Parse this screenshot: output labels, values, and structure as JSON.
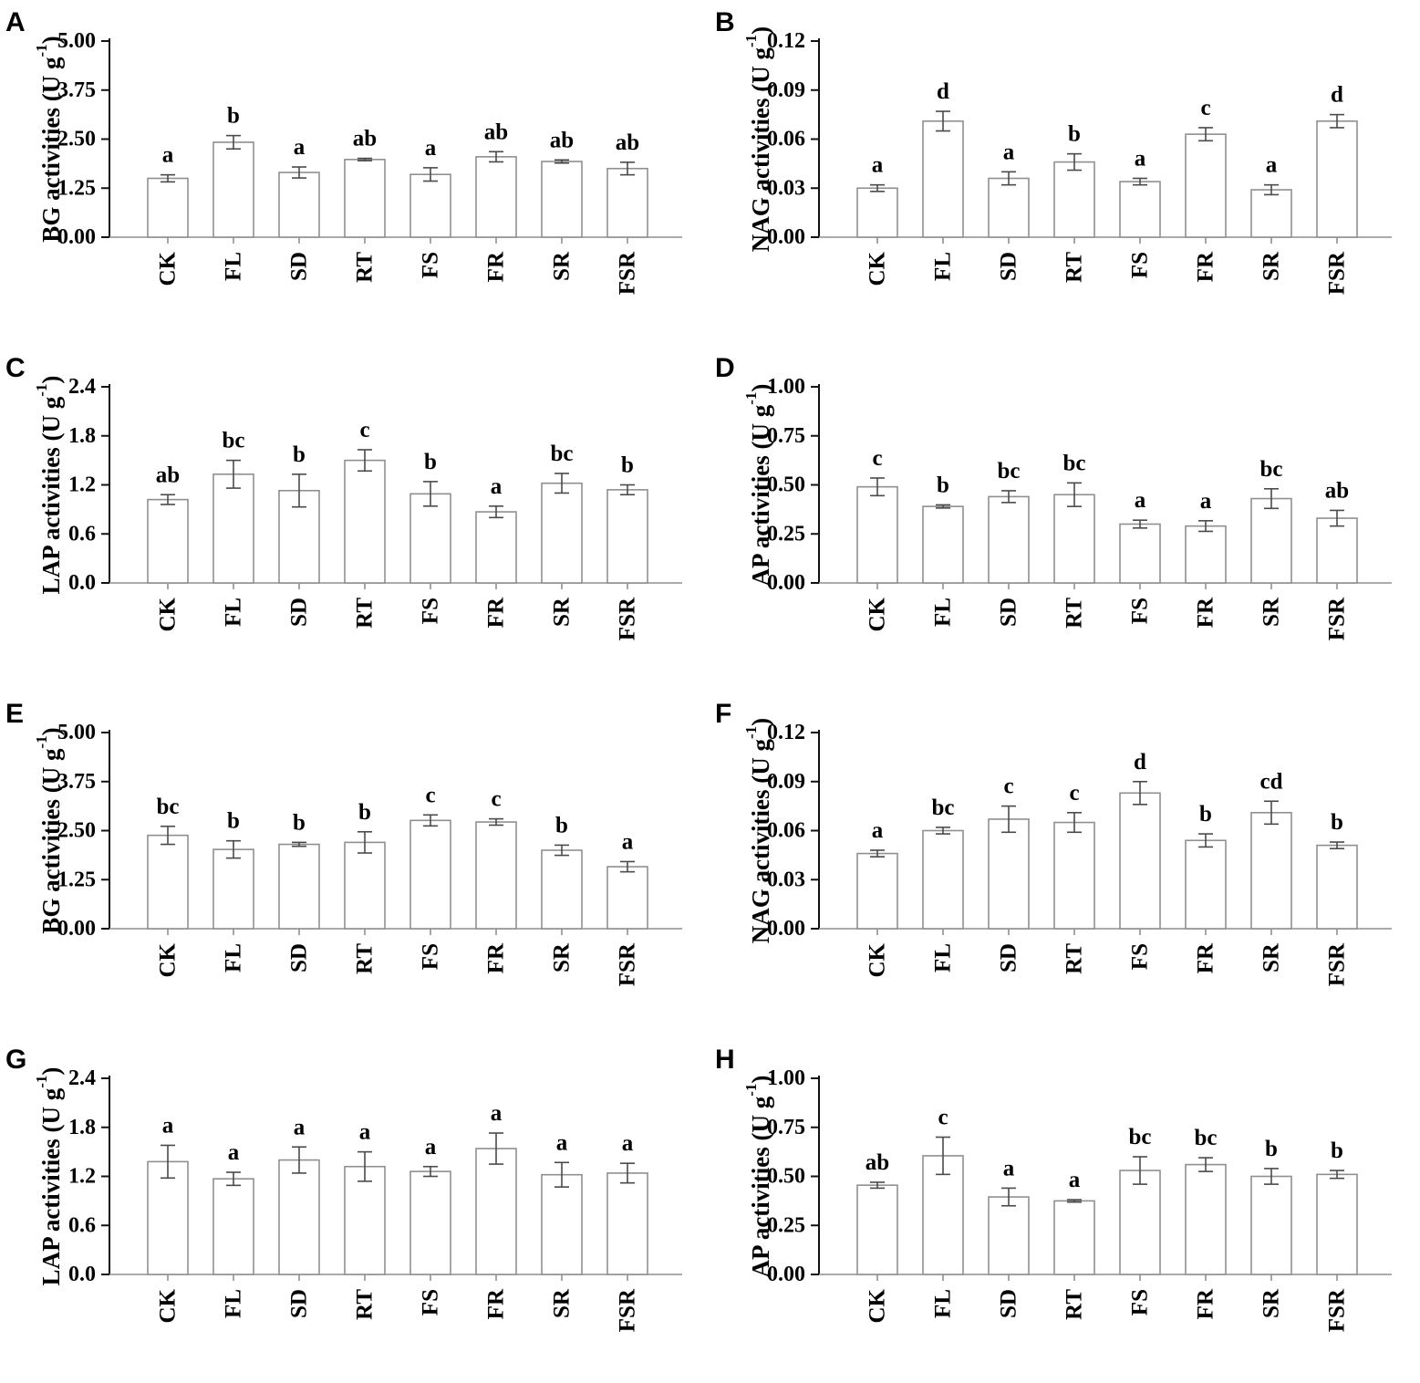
{
  "figure": {
    "background": "#ffffff",
    "panel_letters": [
      "A",
      "B",
      "C",
      "D",
      "E",
      "F",
      "G",
      "H"
    ]
  },
  "colors": {
    "bar_fill": "#ffffff",
    "bar_stroke": "#8f8f8f",
    "axis": "#111111",
    "baseline": "#8f8f8f",
    "error_bar": "#4a4a4a",
    "text": "#000000"
  },
  "chart_data": [
    {
      "panel": "A",
      "type": "bar",
      "ylabel": "BG activities (U g⁻¹)",
      "ylabel_prefix": "BG activities (U g",
      "ylabel_sup": "-1",
      "ylabel_suffix": ")",
      "categories": [
        "CK",
        "FL",
        "SD",
        "RT",
        "FS",
        "FR",
        "SR",
        "FSR"
      ],
      "values": [
        1.5,
        2.42,
        1.65,
        1.98,
        1.6,
        2.05,
        1.93,
        1.75
      ],
      "errors": [
        0.09,
        0.17,
        0.14,
        0.03,
        0.17,
        0.13,
        0.04,
        0.16
      ],
      "sig_letters": [
        "a",
        "b",
        "a",
        "ab",
        "a",
        "ab",
        "ab",
        "ab"
      ],
      "ylim": [
        0,
        5
      ],
      "yticks": [
        0,
        1.25,
        2.5,
        3.75,
        5
      ],
      "ytick_labels": [
        "0.00",
        "1.25",
        "2.50",
        "3.75",
        "5.00"
      ],
      "grid": false,
      "legend": null
    },
    {
      "panel": "B",
      "type": "bar",
      "ylabel": "NAG activities (U g⁻¹)",
      "ylabel_prefix": "NAG activities (U g",
      "ylabel_sup": "-1",
      "ylabel_suffix": ")",
      "categories": [
        "CK",
        "FL",
        "SD",
        "RT",
        "FS",
        "FR",
        "SR",
        "FSR"
      ],
      "values": [
        0.03,
        0.071,
        0.036,
        0.046,
        0.034,
        0.063,
        0.029,
        0.071
      ],
      "errors": [
        0.002,
        0.006,
        0.004,
        0.005,
        0.002,
        0.004,
        0.003,
        0.004
      ],
      "sig_letters": [
        "a",
        "d",
        "a",
        "b",
        "a",
        "c",
        "a",
        "d"
      ],
      "ylim": [
        0,
        0.12
      ],
      "yticks": [
        0,
        0.03,
        0.06,
        0.09,
        0.12
      ],
      "ytick_labels": [
        "0.00",
        "0.03",
        "0.06",
        "0.09",
        "0.12"
      ],
      "grid": false,
      "legend": null
    },
    {
      "panel": "C",
      "type": "bar",
      "ylabel": "LAP activities (U g⁻¹)",
      "ylabel_prefix": "LAP activities (U g",
      "ylabel_sup": "-1",
      "ylabel_suffix": ")",
      "categories": [
        "CK",
        "FL",
        "SD",
        "RT",
        "FS",
        "FR",
        "SR",
        "FSR"
      ],
      "values": [
        1.02,
        1.33,
        1.13,
        1.5,
        1.09,
        0.87,
        1.22,
        1.14
      ],
      "errors": [
        0.06,
        0.17,
        0.2,
        0.13,
        0.15,
        0.07,
        0.12,
        0.06
      ],
      "sig_letters": [
        "ab",
        "bc",
        "b",
        "c",
        "b",
        "a",
        "bc",
        "b"
      ],
      "ylim": [
        0,
        2.4
      ],
      "yticks": [
        0,
        0.6,
        1.2,
        1.8,
        2.4
      ],
      "ytick_labels": [
        "0.0",
        "0.6",
        "1.2",
        "1.8",
        "2.4"
      ],
      "grid": false,
      "legend": null
    },
    {
      "panel": "D",
      "type": "bar",
      "ylabel": "AP activities (U g⁻¹)",
      "ylabel_prefix": "AP activities (U g",
      "ylabel_sup": "-1",
      "ylabel_suffix": ")",
      "categories": [
        "CK",
        "FL",
        "SD",
        "RT",
        "FS",
        "FR",
        "SR",
        "FSR"
      ],
      "values": [
        0.49,
        0.39,
        0.44,
        0.45,
        0.3,
        0.29,
        0.43,
        0.33
      ],
      "errors": [
        0.045,
        0.008,
        0.03,
        0.06,
        0.02,
        0.027,
        0.05,
        0.04
      ],
      "sig_letters": [
        "c",
        "b",
        "bc",
        "bc",
        "a",
        "a",
        "bc",
        "ab"
      ],
      "ylim": [
        0,
        1
      ],
      "yticks": [
        0,
        0.25,
        0.5,
        0.75,
        1
      ],
      "ytick_labels": [
        "0.00",
        "0.25",
        "0.50",
        "0.75",
        "1.00"
      ],
      "grid": false,
      "legend": null
    },
    {
      "panel": "E",
      "type": "bar",
      "ylabel": "BG activities (U g⁻¹)",
      "ylabel_prefix": "BG activities (U g",
      "ylabel_sup": "-1",
      "ylabel_suffix": ")",
      "categories": [
        "CK",
        "FL",
        "SD",
        "RT",
        "FS",
        "FR",
        "SR",
        "FSR"
      ],
      "values": [
        2.38,
        2.02,
        2.15,
        2.2,
        2.76,
        2.72,
        2.0,
        1.58
      ],
      "errors": [
        0.23,
        0.22,
        0.05,
        0.27,
        0.14,
        0.08,
        0.13,
        0.13
      ],
      "sig_letters": [
        "bc",
        "b",
        "b",
        "b",
        "c",
        "c",
        "b",
        "a"
      ],
      "ylim": [
        0,
        5
      ],
      "yticks": [
        0,
        1.25,
        2.5,
        3.75,
        5
      ],
      "ytick_labels": [
        "0.00",
        "1.25",
        "2.50",
        "3.75",
        "5.00"
      ],
      "grid": false,
      "legend": null
    },
    {
      "panel": "F",
      "type": "bar",
      "ylabel": "NAG activities (U g⁻¹)",
      "ylabel_prefix": "NAG activities (U g",
      "ylabel_sup": "-1",
      "ylabel_suffix": ")",
      "categories": [
        "CK",
        "FL",
        "SD",
        "RT",
        "FS",
        "FR",
        "SR",
        "FSR"
      ],
      "values": [
        0.046,
        0.06,
        0.067,
        0.065,
        0.083,
        0.054,
        0.071,
        0.051
      ],
      "errors": [
        0.002,
        0.002,
        0.008,
        0.006,
        0.007,
        0.004,
        0.007,
        0.002
      ],
      "sig_letters": [
        "a",
        "bc",
        "c",
        "c",
        "d",
        "b",
        "cd",
        "b"
      ],
      "ylim": [
        0,
        0.12
      ],
      "yticks": [
        0,
        0.03,
        0.06,
        0.09,
        0.12
      ],
      "ytick_labels": [
        "0.00",
        "0.03",
        "0.06",
        "0.09",
        "0.12"
      ],
      "grid": false,
      "legend": null
    },
    {
      "panel": "G",
      "type": "bar",
      "ylabel": "LAP activities (U g⁻¹)",
      "ylabel_prefix": "LAP activities (U g",
      "ylabel_sup": "-1",
      "ylabel_suffix": ")",
      "categories": [
        "CK",
        "FL",
        "SD",
        "RT",
        "FS",
        "FR",
        "SR",
        "FSR"
      ],
      "values": [
        1.38,
        1.17,
        1.4,
        1.32,
        1.26,
        1.54,
        1.22,
        1.24
      ],
      "errors": [
        0.2,
        0.08,
        0.16,
        0.18,
        0.06,
        0.19,
        0.15,
        0.12
      ],
      "sig_letters": [
        "a",
        "a",
        "a",
        "a",
        "a",
        "a",
        "a",
        "a"
      ],
      "ylim": [
        0,
        2.4
      ],
      "yticks": [
        0,
        0.6,
        1.2,
        1.8,
        2.4
      ],
      "ytick_labels": [
        "0.0",
        "0.6",
        "1.2",
        "1.8",
        "2.4"
      ],
      "grid": false,
      "legend": null
    },
    {
      "panel": "H",
      "type": "bar",
      "ylabel": "AP activities (U g⁻¹)",
      "ylabel_prefix": "AP activities (U g",
      "ylabel_sup": "-1",
      "ylabel_suffix": ")",
      "categories": [
        "CK",
        "FL",
        "SD",
        "RT",
        "FS",
        "FR",
        "SR",
        "FSR"
      ],
      "values": [
        0.455,
        0.605,
        0.395,
        0.375,
        0.53,
        0.56,
        0.5,
        0.51
      ],
      "errors": [
        0.015,
        0.095,
        0.045,
        0.006,
        0.07,
        0.035,
        0.04,
        0.02
      ],
      "sig_letters": [
        "ab",
        "c",
        "a",
        "a",
        "bc",
        "bc",
        "b",
        "b"
      ],
      "ylim": [
        0,
        1
      ],
      "yticks": [
        0,
        0.25,
        0.5,
        0.75,
        1
      ],
      "ytick_labels": [
        "0.00",
        "0.25",
        "0.50",
        "0.75",
        "1.00"
      ],
      "grid": false,
      "legend": null
    }
  ]
}
